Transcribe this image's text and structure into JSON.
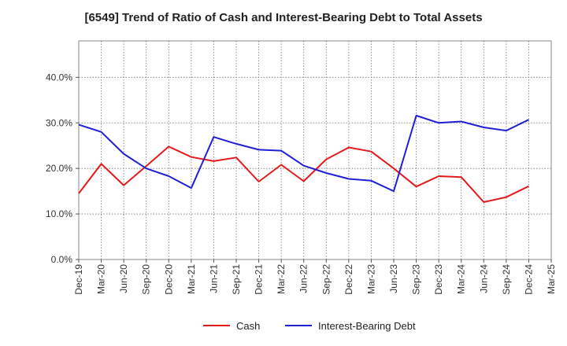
{
  "chart_data": {
    "type": "line",
    "title": "[6549]  Trend of Ratio of Cash and Interest-Bearing Debt to Total Assets",
    "xlabel": "",
    "ylabel": "",
    "ylim": [
      0,
      48
    ],
    "y_ticks": [
      "0.0%",
      "10.0%",
      "20.0%",
      "30.0%",
      "40.0%"
    ],
    "y_tick_values": [
      0,
      10,
      20,
      30,
      40
    ],
    "grid": true,
    "legend_position": "bottom",
    "categories": [
      "Dec-19",
      "Mar-20",
      "Jun-20",
      "Sep-20",
      "Dec-20",
      "Mar-21",
      "Jun-21",
      "Sep-21",
      "Dec-21",
      "Mar-22",
      "Jun-22",
      "Sep-22",
      "Dec-22",
      "Mar-23",
      "Jun-23",
      "Sep-23",
      "Dec-23",
      "Mar-24",
      "Jun-24",
      "Sep-24",
      "Dec-24",
      "Mar-25"
    ],
    "series": [
      {
        "name": "Cash",
        "color": "#e31a1c",
        "values": [
          14.5,
          21.0,
          16.3,
          20.5,
          24.8,
          22.5,
          21.6,
          22.4,
          17.1,
          20.8,
          17.2,
          22.0,
          24.6,
          23.7,
          20.0,
          16.0,
          18.3,
          18.1,
          12.6,
          13.7,
          16.1,
          null
        ]
      },
      {
        "name": "Interest-Bearing Debt",
        "color": "#1f1fd6",
        "values": [
          29.6,
          28.0,
          23.2,
          20.0,
          18.3,
          15.7,
          26.9,
          25.4,
          24.1,
          23.9,
          20.6,
          19.0,
          17.7,
          17.3,
          15.0,
          31.6,
          30.0,
          30.3,
          29.0,
          28.3,
          30.7,
          null
        ]
      }
    ]
  }
}
